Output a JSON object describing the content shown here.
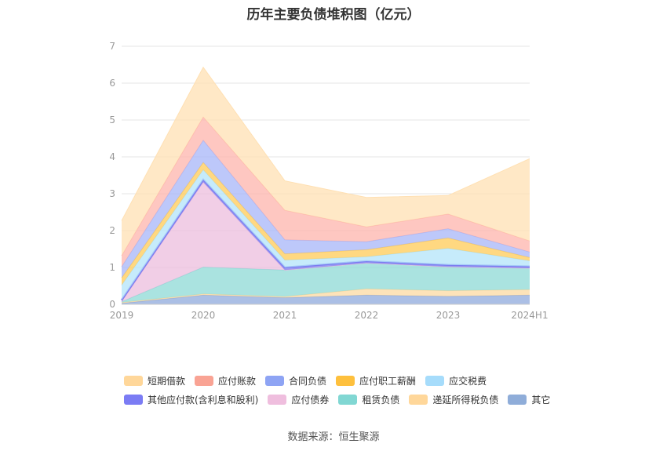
{
  "chart_data": {
    "type": "area",
    "title": "历年主要负债堆积图（亿元）",
    "categories": [
      "2019",
      "2020",
      "2021",
      "2022",
      "2023",
      "2024H1"
    ],
    "y_ticks": [
      "0",
      "1",
      "2",
      "3",
      "4",
      "5",
      "6",
      "7"
    ],
    "ylim": [
      0,
      7
    ],
    "grid": true,
    "legend_position": "bottom",
    "series": [
      {
        "name": "其它",
        "color": "#8faadc",
        "values": [
          0.03,
          0.25,
          0.18,
          0.25,
          0.22,
          0.25
        ]
      },
      {
        "name": "递延所得税负债",
        "color": "#fcd9a1",
        "values": [
          0.02,
          0.03,
          0.03,
          0.17,
          0.15,
          0.15
        ]
      },
      {
        "name": "租赁负债",
        "color": "#8dd9d6",
        "values": [
          0.02,
          0.73,
          0.72,
          0.7,
          0.65,
          0.58
        ]
      },
      {
        "name": "应付债券",
        "color": "#ecbede",
        "values": [
          0.0,
          2.3,
          0.0,
          0.0,
          0.0,
          0.0
        ]
      },
      {
        "name": "其他应付款(含利息和股利)",
        "color": "#7c7cf0",
        "values": [
          0.05,
          0.07,
          0.07,
          0.05,
          0.05,
          0.05
        ]
      },
      {
        "name": "应交税费",
        "color": "#b3e4fa",
        "values": [
          0.4,
          0.27,
          0.2,
          0.12,
          0.45,
          0.15
        ]
      },
      {
        "name": "应付职工薪酬",
        "color": "#ffcb57",
        "values": [
          0.2,
          0.2,
          0.17,
          0.19,
          0.28,
          0.09
        ]
      },
      {
        "name": "合同负债",
        "color": "#a7b5f8",
        "values": [
          0.3,
          0.6,
          0.38,
          0.22,
          0.25,
          0.15
        ]
      },
      {
        "name": "应付账款",
        "color": "#fdb4ac",
        "values": [
          0.3,
          0.63,
          0.8,
          0.4,
          0.4,
          0.3
        ]
      },
      {
        "name": "短期借款",
        "color": "#ffe0b3",
        "values": [
          0.95,
          1.35,
          0.8,
          0.8,
          0.5,
          2.23
        ]
      }
    ]
  },
  "legend": [
    [
      {
        "label": "短期借款",
        "color": "#ffd79a"
      },
      {
        "label": "应付账款",
        "color": "#f9a394"
      },
      {
        "label": "合同负债",
        "color": "#8ea4f4"
      },
      {
        "label": "应付职工薪酬",
        "color": "#fec03d"
      },
      {
        "label": "应交税费",
        "color": "#a6dcfb"
      }
    ],
    [
      {
        "label": "其他应付款(含利息和股利)",
        "color": "#7b7cf4"
      },
      {
        "label": "应付债券",
        "color": "#efbede"
      },
      {
        "label": "租赁负债",
        "color": "#81d7d3"
      },
      {
        "label": "递延所得税负债",
        "color": "#ffd79a"
      },
      {
        "label": "其它",
        "color": "#8fadd9"
      }
    ]
  ],
  "source": "数据来源：恒生聚源"
}
